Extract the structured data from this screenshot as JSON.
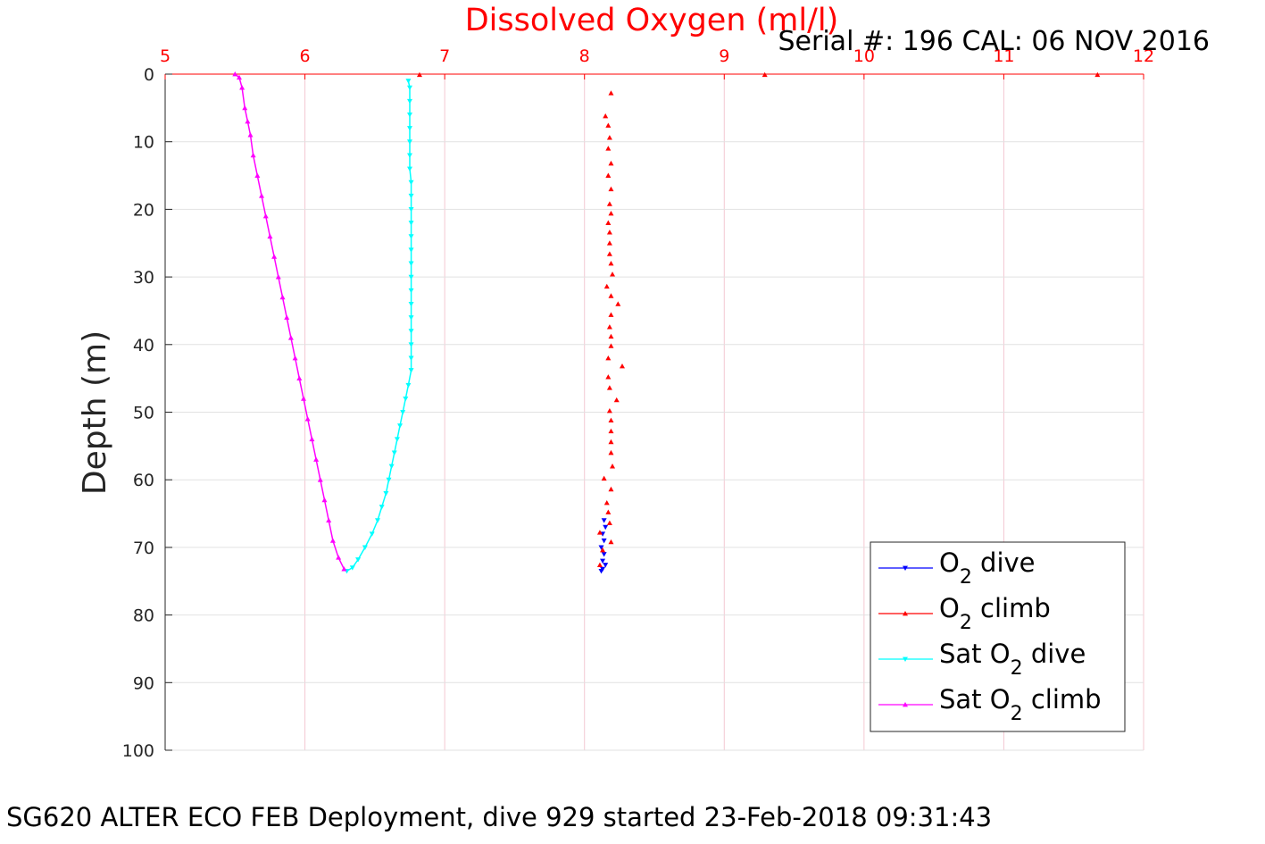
{
  "chart_data": {
    "type": "scatter",
    "title": "Dissolved Oxygen (ml/l)",
    "subtitle": "Serial #: 196  CAL: 06 NOV 2016",
    "ylabel": "Depth (m)",
    "xlabel": "",
    "caption": "SG620 ALTER ECO FEB Deployment, dive 929 started 23-Feb-2018 09:31:43",
    "xlim": [
      5,
      12
    ],
    "ylim": [
      0,
      100
    ],
    "y_reversed": true,
    "x_axis_position": "top",
    "x_tick_color": "#ff0000",
    "title_color": "#ff0000",
    "grid": true,
    "legend_position": "bottom-right",
    "xticks": [
      "5",
      "6",
      "7",
      "8",
      "9",
      "10",
      "11",
      "12"
    ],
    "yticks": [
      "0",
      "10",
      "20",
      "30",
      "40",
      "50",
      "60",
      "70",
      "80",
      "90",
      "100"
    ],
    "legend": [
      {
        "pre": "O",
        "sub": "2",
        "post": " dive",
        "color": "#0000ff",
        "marker": "down"
      },
      {
        "pre": "O",
        "sub": "2",
        "post": " climb",
        "color": "#ff0000",
        "marker": "up"
      },
      {
        "pre": "Sat O",
        "sub": "2",
        "post": " dive",
        "color": "#00ffff",
        "marker": "down"
      },
      {
        "pre": "Sat O",
        "sub": "2",
        "post": " climb",
        "color": "#ff00ff",
        "marker": "up"
      }
    ],
    "series": [
      {
        "name": "O2 dive",
        "color": "#0000ff",
        "marker": "down",
        "line": false,
        "points": [
          [
            8.14,
            66.0
          ],
          [
            8.15,
            67.0
          ],
          [
            8.13,
            68.0
          ],
          [
            8.14,
            69.0
          ],
          [
            8.12,
            70.0
          ],
          [
            8.14,
            71.0
          ],
          [
            8.13,
            72.0
          ],
          [
            8.15,
            72.6
          ],
          [
            8.13,
            73.2
          ],
          [
            8.12,
            73.5
          ]
        ]
      },
      {
        "name": "O2 climb",
        "color": "#ff0000",
        "marker": "up",
        "line": false,
        "points": [
          [
            6.82,
            0.1
          ],
          [
            9.29,
            0.1
          ],
          [
            11.67,
            0.1
          ],
          [
            8.19,
            2.8
          ],
          [
            8.15,
            6.2
          ],
          [
            8.17,
            7.6
          ],
          [
            8.18,
            9.4
          ],
          [
            8.17,
            11.0
          ],
          [
            8.19,
            13.2
          ],
          [
            8.17,
            15.0
          ],
          [
            8.19,
            17.0
          ],
          [
            8.18,
            19.2
          ],
          [
            8.19,
            20.6
          ],
          [
            8.17,
            22.0
          ],
          [
            8.18,
            23.4
          ],
          [
            8.18,
            25.0
          ],
          [
            8.18,
            26.6
          ],
          [
            8.19,
            28.0
          ],
          [
            8.2,
            29.6
          ],
          [
            8.16,
            31.4
          ],
          [
            8.19,
            32.8
          ],
          [
            8.24,
            34.0
          ],
          [
            8.19,
            35.6
          ],
          [
            8.18,
            37.4
          ],
          [
            8.19,
            38.8
          ],
          [
            8.19,
            40.2
          ],
          [
            8.17,
            42.0
          ],
          [
            8.27,
            43.2
          ],
          [
            8.17,
            44.8
          ],
          [
            8.18,
            46.4
          ],
          [
            8.23,
            48.2
          ],
          [
            8.18,
            49.8
          ],
          [
            8.19,
            51.2
          ],
          [
            8.19,
            52.8
          ],
          [
            8.19,
            54.4
          ],
          [
            8.19,
            56.0
          ],
          [
            8.2,
            58.0
          ],
          [
            8.14,
            59.8
          ],
          [
            8.19,
            61.4
          ],
          [
            8.16,
            63.4
          ],
          [
            8.17,
            64.8
          ],
          [
            8.18,
            66.4
          ],
          [
            8.11,
            67.8
          ],
          [
            8.19,
            69.2
          ],
          [
            8.13,
            70.4
          ],
          [
            8.11,
            72.6
          ]
        ]
      },
      {
        "name": "Sat O2 dive",
        "color": "#00ffff",
        "marker": "down",
        "line": true,
        "points": [
          [
            6.74,
            1.0
          ],
          [
            6.75,
            2.0
          ],
          [
            6.75,
            4.0
          ],
          [
            6.75,
            6.0
          ],
          [
            6.75,
            8.0
          ],
          [
            6.75,
            10.0
          ],
          [
            6.75,
            12.0
          ],
          [
            6.75,
            14.0
          ],
          [
            6.76,
            16.0
          ],
          [
            6.76,
            18.0
          ],
          [
            6.76,
            20.0
          ],
          [
            6.76,
            22.0
          ],
          [
            6.76,
            24.0
          ],
          [
            6.76,
            26.0
          ],
          [
            6.76,
            28.0
          ],
          [
            6.76,
            30.0
          ],
          [
            6.76,
            32.0
          ],
          [
            6.76,
            34.0
          ],
          [
            6.76,
            36.0
          ],
          [
            6.76,
            38.0
          ],
          [
            6.76,
            40.0
          ],
          [
            6.76,
            42.0
          ],
          [
            6.76,
            43.8
          ],
          [
            6.74,
            46.0
          ],
          [
            6.72,
            48.0
          ],
          [
            6.7,
            50.0
          ],
          [
            6.68,
            52.0
          ],
          [
            6.66,
            54.0
          ],
          [
            6.64,
            56.0
          ],
          [
            6.62,
            58.0
          ],
          [
            6.6,
            60.0
          ],
          [
            6.58,
            62.0
          ],
          [
            6.55,
            64.0
          ],
          [
            6.52,
            66.0
          ],
          [
            6.48,
            68.0
          ],
          [
            6.43,
            70.0
          ],
          [
            6.38,
            71.8
          ],
          [
            6.34,
            73.0
          ],
          [
            6.3,
            73.5
          ]
        ]
      },
      {
        "name": "Sat O2 climb",
        "color": "#ff00ff",
        "marker": "up",
        "line": true,
        "points": [
          [
            5.5,
            0.0
          ],
          [
            5.53,
            0.5
          ],
          [
            5.55,
            2.0
          ],
          [
            5.57,
            5.0
          ],
          [
            5.59,
            7.0
          ],
          [
            5.61,
            9.0
          ],
          [
            5.63,
            12.0
          ],
          [
            5.66,
            15.0
          ],
          [
            5.69,
            18.0
          ],
          [
            5.72,
            21.0
          ],
          [
            5.75,
            24.0
          ],
          [
            5.78,
            27.0
          ],
          [
            5.81,
            30.0
          ],
          [
            5.84,
            33.0
          ],
          [
            5.87,
            36.0
          ],
          [
            5.9,
            39.0
          ],
          [
            5.93,
            42.0
          ],
          [
            5.96,
            45.0
          ],
          [
            5.99,
            48.0
          ],
          [
            6.02,
            51.0
          ],
          [
            6.05,
            54.0
          ],
          [
            6.08,
            57.0
          ],
          [
            6.11,
            60.0
          ],
          [
            6.14,
            63.0
          ],
          [
            6.17,
            66.0
          ],
          [
            6.2,
            69.0
          ],
          [
            6.24,
            71.5
          ],
          [
            6.28,
            73.2
          ]
        ]
      }
    ]
  }
}
